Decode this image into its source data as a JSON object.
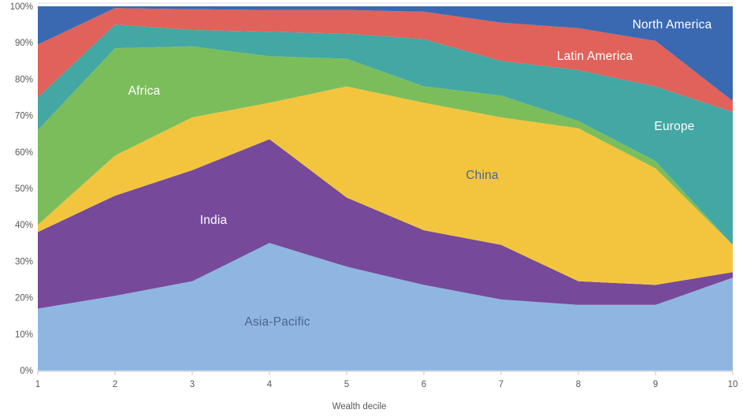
{
  "chart_data": {
    "type": "area",
    "stacked": true,
    "title": "",
    "xlabel": "Wealth decile",
    "ylabel": "",
    "unit": "percent share",
    "grid": false,
    "legend_position": "labels-inside-areas",
    "x": [
      1,
      2,
      3,
      4,
      5,
      6,
      7,
      8,
      9,
      10
    ],
    "xtick_labels": [
      "1",
      "2",
      "3",
      "4",
      "5",
      "6",
      "7",
      "8",
      "9",
      "10"
    ],
    "ylim": [
      0,
      100
    ],
    "ytick_values": [
      0,
      10,
      20,
      30,
      40,
      50,
      60,
      70,
      80,
      90,
      100
    ],
    "ytick_labels": [
      "0%",
      "10%",
      "20%",
      "30%",
      "40%",
      "50%",
      "60%",
      "70%",
      "80%",
      "90%",
      "100%"
    ],
    "series": [
      {
        "name": "Asia-Pacific",
        "color": "#8FB6E1",
        "values": [
          17.0,
          20.5,
          24.5,
          35.0,
          28.5,
          23.5,
          19.5,
          18.0,
          18.0,
          25.5
        ]
      },
      {
        "name": "India",
        "color": "#76499A",
        "values": [
          21.0,
          27.5,
          30.5,
          28.5,
          19.0,
          15.0,
          15.0,
          6.5,
          5.5,
          1.5
        ]
      },
      {
        "name": "China",
        "color": "#F3C53F",
        "values": [
          2.0,
          11.0,
          14.5,
          10.0,
          30.5,
          35.0,
          35.0,
          42.0,
          32.0,
          7.5
        ]
      },
      {
        "name": "Africa",
        "color": "#7CBD5B",
        "values": [
          26.0,
          29.5,
          19.5,
          12.8,
          7.6,
          4.5,
          6.0,
          2.0,
          2.0,
          0.0
        ]
      },
      {
        "name": "Europe",
        "color": "#43A7A3",
        "values": [
          9.0,
          6.5,
          4.5,
          6.7,
          6.9,
          13.0,
          9.5,
          14.0,
          20.5,
          36.5
        ]
      },
      {
        "name": "Latin America",
        "color": "#E0625A",
        "values": [
          14.5,
          4.5,
          5.7,
          6.0,
          6.5,
          7.5,
          10.5,
          11.5,
          12.5,
          3.0
        ]
      },
      {
        "name": "North America",
        "color": "#3A69B2",
        "values": [
          10.5,
          0.5,
          0.8,
          1.0,
          1.0,
          1.5,
          4.5,
          6.0,
          9.5,
          26.0
        ]
      }
    ],
    "axis_text_color": "#58585A",
    "axis_line_color": "#C9C9C9",
    "labels": {
      "north_america": {
        "text": "North America",
        "color": "#FFFFFF"
      },
      "latin_america": {
        "text": "Latin America",
        "color": "#FFFFFF"
      },
      "europe": {
        "text": "Europe",
        "color": "#FFFFFF"
      },
      "africa": {
        "text": "Africa",
        "color": "#FFFFFF"
      },
      "china": {
        "text": "China",
        "color": "#4A6590"
      },
      "india": {
        "text": "India",
        "color": "#FFFFFF"
      },
      "asia_pacific": {
        "text": "Asia-Pacific",
        "color": "#4A6590"
      }
    }
  }
}
